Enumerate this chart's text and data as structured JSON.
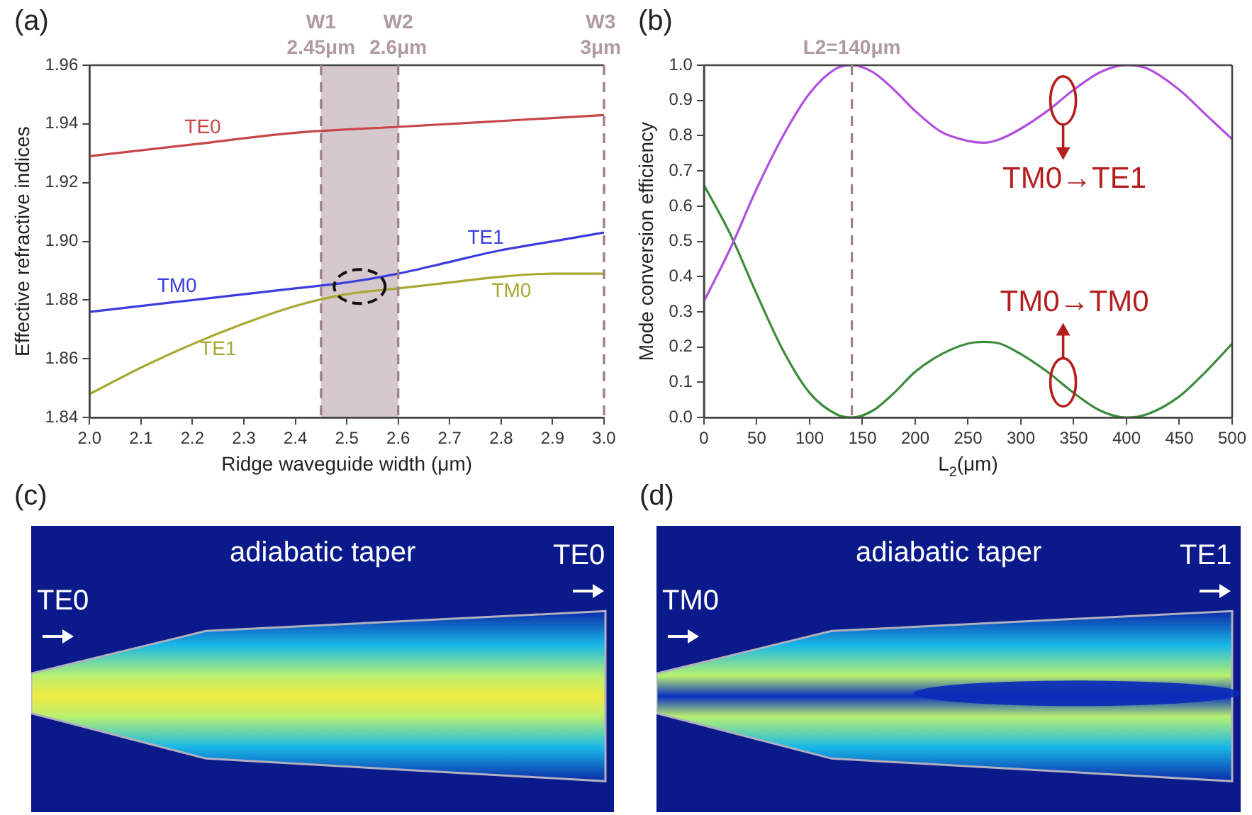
{
  "chart_data": [
    {
      "type": "line",
      "title": "(a)",
      "xlabel": "Ridge waveguide width (μm)",
      "ylabel": "Effective refractive indices",
      "xlim": [
        2.0,
        3.0
      ],
      "ylim": [
        1.84,
        1.96
      ],
      "xticks": [
        {
          "value": 2,
          "label": "2.0"
        },
        2.1,
        2.2,
        2.3,
        2.4,
        2.5,
        2.6,
        2.7,
        2.8,
        2.9,
        {
          "value": 3,
          "label": "3.0"
        }
      ],
      "yticks": [
        1.84,
        1.86,
        1.88,
        {
          "value": 1.9,
          "label": "1.90"
        },
        1.92,
        1.94,
        1.96
      ],
      "grid": false,
      "legend": false,
      "marker": "none",
      "line_style": "solid",
      "series": [
        {
          "color": "#c84646",
          "x": [
            2.0,
            2.2,
            2.4,
            2.6,
            2.8,
            3.0
          ],
          "values": [
            1.929,
            1.933,
            1.937,
            1.939,
            1.941,
            1.943
          ]
        },
        {
          "color": "#3c3cdc",
          "x": [
            2.0,
            2.2,
            2.4,
            2.5,
            2.6,
            2.7,
            2.8,
            2.9,
            3.0
          ],
          "values": [
            1.876,
            1.88,
            1.884,
            1.886,
            1.889,
            1.893,
            1.897,
            1.9,
            1.903
          ]
        },
        {
          "color": "#a8a832",
          "x": [
            2.0,
            2.1,
            2.2,
            2.3,
            2.4,
            2.5,
            2.6,
            2.7,
            2.8,
            2.9,
            3.0
          ],
          "values": [
            1.848,
            1.857,
            1.865,
            1.872,
            1.878,
            1.882,
            1.884,
            1.886,
            1.888,
            1.889,
            1.889
          ]
        }
      ],
      "bands": [
        {
          "axis": "x",
          "from": 2.45,
          "to": 2.6,
          "color": "#cbbcc2"
        }
      ],
      "ref_lines": [
        {
          "axis": "x",
          "value": 2.45,
          "label": "W1 2.45μm",
          "color": "#a08088",
          "line_style": "dashed"
        },
        {
          "axis": "x",
          "value": 2.6,
          "label": "W2 2.6μm",
          "color": "#a08088",
          "line_style": "dashed"
        },
        {
          "axis": "x",
          "value": 3.0,
          "label": "W3 3μm",
          "color": "#a08088",
          "line_style": "dashed"
        }
      ],
      "annotations": [
        {
          "text": "TE0",
          "x": 2.22,
          "y": 1.9334
        },
        {
          "text": "TM0",
          "x": 2.17,
          "y": 1.8794
        },
        {
          "text": "TE1",
          "x": 2.77,
          "y": 1.8958
        },
        {
          "text": "TM0",
          "x": 2.82,
          "y": 1.8882
        },
        {
          "text": "TE1",
          "x": 2.25,
          "y": 1.8685
        }
      ]
    },
    {
      "type": "line",
      "title": "(b)",
      "xlabel": "L$_{2}$(μm)",
      "ylabel": "Mode conversion efficiency",
      "xlim": [
        0,
        500
      ],
      "ylim": [
        0,
        1
      ],
      "xticks": [
        0,
        50,
        100,
        150,
        200,
        250,
        300,
        350,
        400,
        450,
        500
      ],
      "yticks": [
        {
          "value": 0,
          "label": "0.0"
        },
        0.1,
        0.2,
        0.3,
        0.4,
        0.5,
        0.6,
        0.7,
        0.8,
        0.9,
        {
          "value": 1,
          "label": "1.0"
        }
      ],
      "grid": false,
      "legend": false,
      "marker": "none",
      "line_style": "solid",
      "series": [
        {
          "color": "#b04fe0",
          "x": [
            0,
            25,
            50,
            75,
            100,
            125,
            140,
            160,
            180,
            200,
            225,
            250,
            265,
            280,
            300,
            325,
            350,
            375,
            400,
            420,
            450,
            475,
            500
          ],
          "values": [
            0.33,
            0.48,
            0.65,
            0.8,
            0.92,
            0.99,
            1.0,
            0.98,
            0.93,
            0.87,
            0.81,
            0.785,
            0.78,
            0.79,
            0.82,
            0.87,
            0.93,
            0.98,
            1.0,
            0.99,
            0.93,
            0.86,
            0.79
          ]
        },
        {
          "color": "#3c8c3c",
          "x": [
            0,
            25,
            50,
            75,
            100,
            125,
            140,
            160,
            180,
            200,
            225,
            250,
            265,
            280,
            300,
            325,
            350,
            375,
            400,
            420,
            450,
            475,
            500
          ],
          "values": [
            0.66,
            0.52,
            0.35,
            0.19,
            0.07,
            0.01,
            0.0,
            0.02,
            0.07,
            0.13,
            0.18,
            0.21,
            0.215,
            0.21,
            0.18,
            0.13,
            0.07,
            0.02,
            0.0,
            0.01,
            0.06,
            0.13,
            0.21
          ]
        }
      ],
      "ref_lines": [
        {
          "axis": "x",
          "value": 140,
          "label": "L2=140μm",
          "color": "#a08088",
          "line_style": "dashed"
        }
      ],
      "annotations": [
        {
          "text": "TM0→TE1",
          "x": 340,
          "y": 0.9
        },
        {
          "text": "TM0→TM0",
          "x": 340,
          "y": 0.1
        }
      ]
    },
    {
      "type": "other",
      "title": "(c)",
      "annotations": [
        "adiabatic taper",
        "TE0",
        "TE0"
      ]
    },
    {
      "type": "other",
      "title": "(d)",
      "annotations": [
        "adiabatic taper",
        "TM0",
        "TE1"
      ]
    }
  ]
}
